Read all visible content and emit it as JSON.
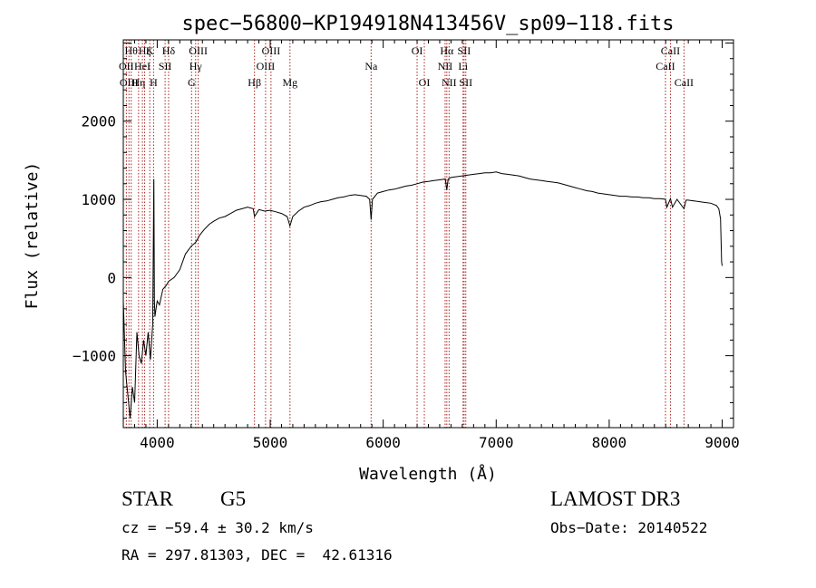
{
  "chart_data": {
    "type": "line",
    "title": "spec−56800−KP194918N413456V_sp09−118.fits",
    "xlabel": "Wavelength (Å)",
    "ylabel": "Flux (relative)",
    "xlim": [
      3700,
      9100
    ],
    "ylim": [
      -1920,
      3040
    ],
    "xticks": [
      4000,
      5000,
      6000,
      7000,
      8000,
      9000
    ],
    "yticks": [
      -1000,
      0,
      1000,
      2000
    ],
    "grid": false,
    "series": [
      {
        "x": [
          3700,
          3720,
          3740,
          3760,
          3780,
          3800,
          3820,
          3840,
          3860,
          3880,
          3900,
          3920,
          3940,
          3960,
          3970,
          3975,
          3980,
          3990,
          4000,
          4020,
          4050,
          4080,
          4100,
          4150,
          4200,
          4250,
          4300,
          4340,
          4380,
          4420,
          4460,
          4500,
          4550,
          4600,
          4650,
          4700,
          4750,
          4800,
          4850,
          4861,
          4900,
          4950,
          5000,
          5050,
          5100,
          5150,
          5175,
          5200,
          5250,
          5300,
          5350,
          5400,
          5450,
          5500,
          5550,
          5600,
          5650,
          5700,
          5750,
          5800,
          5850,
          5880,
          5893,
          5905,
          5950,
          6000,
          6050,
          6100,
          6150,
          6200,
          6250,
          6300,
          6350,
          6400,
          6450,
          6500,
          6550,
          6563,
          6575,
          6600,
          6650,
          6700,
          6750,
          6800,
          6850,
          6900,
          6950,
          7000,
          7050,
          7100,
          7150,
          7200,
          7250,
          7300,
          7350,
          7400,
          7450,
          7500,
          7550,
          7600,
          7650,
          7700,
          7750,
          7800,
          7850,
          7900,
          7950,
          8000,
          8050,
          8100,
          8150,
          8200,
          8250,
          8300,
          8350,
          8400,
          8450,
          8498,
          8510,
          8542,
          8560,
          8600,
          8662,
          8680,
          8700,
          8750,
          8800,
          8850,
          8900,
          8950,
          8970,
          8985,
          8995,
          9000
        ],
        "values": [
          -300,
          -1200,
          -1500,
          -1800,
          -1400,
          -1600,
          -700,
          -1000,
          -1100,
          -800,
          -1000,
          -700,
          -1050,
          -600,
          1260,
          -300,
          -500,
          -400,
          -300,
          -350,
          -150,
          -100,
          -50,
          0,
          100,
          300,
          400,
          450,
          550,
          620,
          680,
          720,
          760,
          780,
          820,
          860,
          880,
          900,
          880,
          780,
          870,
          850,
          860,
          840,
          820,
          780,
          660,
          780,
          850,
          900,
          920,
          950,
          970,
          980,
          1000,
          1020,
          1030,
          1050,
          1060,
          1050,
          1040,
          1000,
          740,
          1000,
          1080,
          1100,
          1120,
          1130,
          1150,
          1170,
          1180,
          1200,
          1220,
          1230,
          1240,
          1250,
          1260,
          1120,
          1260,
          1280,
          1290,
          1300,
          1310,
          1320,
          1330,
          1340,
          1340,
          1350,
          1330,
          1320,
          1310,
          1300,
          1280,
          1260,
          1250,
          1240,
          1230,
          1220,
          1210,
          1190,
          1170,
          1150,
          1130,
          1110,
          1100,
          1080,
          1070,
          1060,
          1050,
          1040,
          1040,
          1030,
          1030,
          1020,
          1020,
          1010,
          1010,
          1000,
          900,
          1010,
          900,
          1000,
          880,
          990,
          990,
          980,
          970,
          960,
          950,
          920,
          880,
          750,
          200,
          150
        ]
      }
    ],
    "lines": [
      {
        "x": 3727,
        "label": "OII",
        "row": 1
      },
      {
        "x": 3750,
        "label": "OIII",
        "row": 2
      },
      {
        "x": 3770,
        "label": "Hθ",
        "row": 0
      },
      {
        "x": 3835,
        "label": "Hη",
        "row": 2
      },
      {
        "x": 3869,
        "label": "HeI",
        "row": 1
      },
      {
        "x": 3889,
        "label": "Hζ",
        "row": 0
      },
      {
        "x": 3934,
        "label": "K",
        "row": 0
      },
      {
        "x": 3968,
        "label": "H",
        "row": 2
      },
      {
        "x": 4070,
        "label": "SII",
        "row": 1
      },
      {
        "x": 4101,
        "label": "Hδ",
        "row": 0
      },
      {
        "x": 4304,
        "label": "G",
        "row": 2
      },
      {
        "x": 4340,
        "label": "Hγ",
        "row": 1
      },
      {
        "x": 4363,
        "label": "OIII",
        "row": 0
      },
      {
        "x": 4861,
        "label": "Hβ",
        "row": 2
      },
      {
        "x": 4959,
        "label": "OIII",
        "row": 1
      },
      {
        "x": 5007,
        "label": "OIII",
        "row": 0
      },
      {
        "x": 5175,
        "label": "Mg",
        "row": 2
      },
      {
        "x": 5893,
        "label": "Na",
        "row": 1
      },
      {
        "x": 6300,
        "label": "OI",
        "row": 0
      },
      {
        "x": 6364,
        "label": "OI",
        "row": 2
      },
      {
        "x": 6548,
        "label": "NII",
        "row": 1
      },
      {
        "x": 6563,
        "label": "Hα",
        "row": 0
      },
      {
        "x": 6583,
        "label": "NII",
        "row": 2
      },
      {
        "x": 6707,
        "label": "Li",
        "row": 1
      },
      {
        "x": 6716,
        "label": "SII",
        "row": 0
      },
      {
        "x": 6731,
        "label": "SII",
        "row": 2
      },
      {
        "x": 8498,
        "label": "CaII",
        "row": 1
      },
      {
        "x": 8542,
        "label": "CaII",
        "row": 0
      },
      {
        "x": 8662,
        "label": "CaII",
        "row": 2
      }
    ],
    "line_color": "#aa2222"
  },
  "info": {
    "class": "STAR",
    "subclass": "G5",
    "survey": "LAMOST DR3",
    "cz": "cz = −59.4 ± 30.2 km/s",
    "obs_date": "Obs−Date: 20140522",
    "coords": "RA = 297.81303, DEC =  42.61316"
  }
}
